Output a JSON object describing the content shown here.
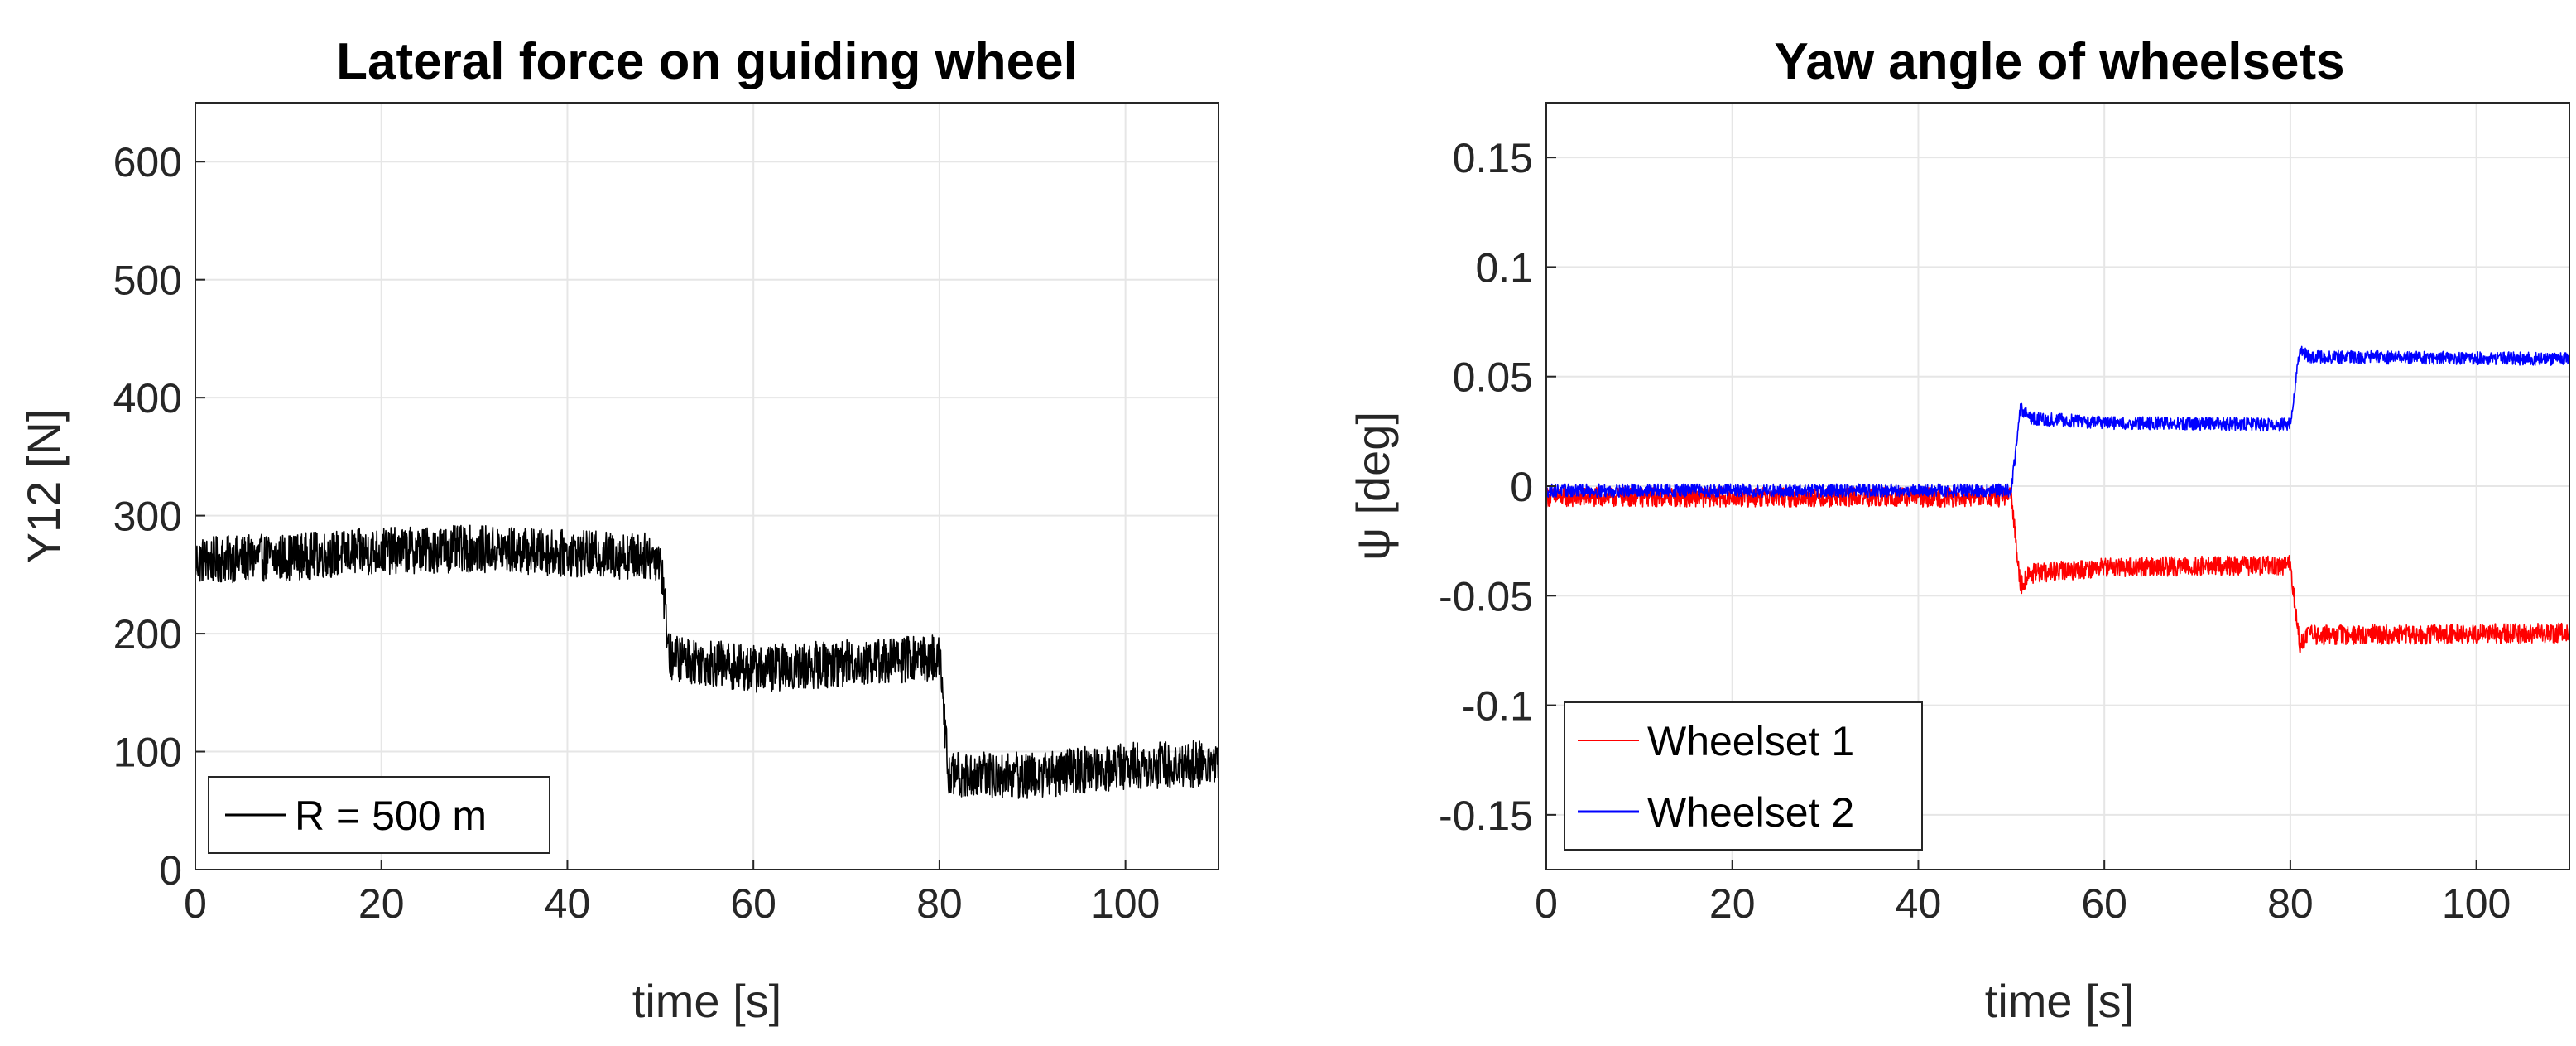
{
  "chart_data": [
    {
      "type": "line",
      "title": "Lateral force on guiding wheel",
      "xlabel": "time [s]",
      "ylabel": "Y12 [N]",
      "xlim": [
        0,
        110
      ],
      "ylim": [
        0,
        650
      ],
      "xticks": [
        "0",
        "20",
        "40",
        "60",
        "80",
        "100"
      ],
      "yticks": [
        "0",
        "100",
        "200",
        "300",
        "400",
        "500",
        "600"
      ],
      "grid": true,
      "legend_position": "bottom-left",
      "series": [
        {
          "name": "R = 500 m",
          "color": "#000000",
          "noise_band": 40,
          "points": [
            [
              0,
              262
            ],
            [
              10,
              265
            ],
            [
              20,
              270
            ],
            [
              30,
              272
            ],
            [
              40,
              268
            ],
            [
              50,
              265
            ],
            [
              51,
              180
            ],
            [
              60,
              170
            ],
            [
              70,
              175
            ],
            [
              80,
              180
            ],
            [
              81,
              80
            ],
            [
              90,
              80
            ],
            [
              100,
              88
            ],
            [
              110,
              90
            ]
          ]
        }
      ]
    },
    {
      "type": "line",
      "title": "Yaw angle of wheelsets",
      "xlabel": "time [s]",
      "ylabel": "ψ [deg]",
      "xlim": [
        0,
        110
      ],
      "ylim": [
        -0.175,
        0.175
      ],
      "xticks": [
        "0",
        "20",
        "40",
        "60",
        "80",
        "100"
      ],
      "yticks": [
        "-0.15",
        "-0.1",
        "-0.05",
        "0",
        "0.05",
        "0.1",
        "0.15"
      ],
      "grid": true,
      "legend_position": "bottom-left",
      "series": [
        {
          "name": "Wheelset 1",
          "color": "#ff0000",
          "noise_band": 0.009,
          "points": [
            [
              0,
              -0.005
            ],
            [
              50,
              -0.005
            ],
            [
              51,
              -0.045
            ],
            [
              52,
              -0.04
            ],
            [
              60,
              -0.037
            ],
            [
              80,
              -0.036
            ],
            [
              81,
              -0.072
            ],
            [
              82,
              -0.068
            ],
            [
              110,
              -0.067
            ]
          ]
        },
        {
          "name": "Wheelset 2",
          "color": "#0000ff",
          "noise_band": 0.006,
          "points": [
            [
              0,
              -0.002
            ],
            [
              50,
              -0.002
            ],
            [
              51,
              0.036
            ],
            [
              52,
              0.031
            ],
            [
              60,
              0.029
            ],
            [
              80,
              0.028
            ],
            [
              81,
              0.063
            ],
            [
              82,
              0.059
            ],
            [
              110,
              0.058
            ]
          ]
        }
      ]
    }
  ]
}
